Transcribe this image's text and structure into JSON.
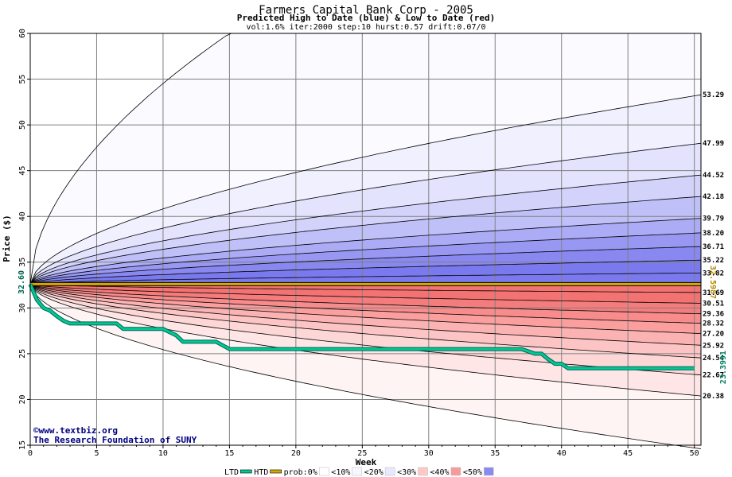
{
  "chart_data": {
    "type": "area",
    "title": "Farmers Capital Bank Corp - 2005",
    "subtitle": "Predicted High to Date (blue) &  Low to Date (red)",
    "params": "vol:1.6% iter:2000 step:10 hurst:0.57 drift:0.07/0",
    "xlabel": "Week",
    "ylabel": "Price ($)",
    "xlim": [
      0,
      50.5
    ],
    "ylim": [
      15,
      60
    ],
    "x_ticks": [
      0,
      5,
      10,
      15,
      20,
      25,
      30,
      35,
      40,
      45,
      50
    ],
    "y_ticks": [
      15,
      20,
      25,
      30,
      35,
      40,
      45,
      50,
      55,
      60
    ],
    "grid": true,
    "start_price": 32.6,
    "start_label": "32.60",
    "high_to_date_label": "32.5987",
    "low_to_date_label": "23.3991",
    "high_bands": [
      {
        "end": 33.82,
        "label": "33.82"
      },
      {
        "end": 35.22,
        "label": "35.22"
      },
      {
        "end": 36.71,
        "label": "36.71"
      },
      {
        "end": 38.2,
        "label": "38.20"
      },
      {
        "end": 39.79,
        "label": "39.79"
      },
      {
        "end": 42.18,
        "label": "42.18"
      },
      {
        "end": 44.52,
        "label": "44.52"
      },
      {
        "end": 47.99,
        "label": "47.99"
      },
      {
        "end": 53.29,
        "label": "53.29"
      }
    ],
    "low_bands": [
      {
        "end": 31.69,
        "label": "31.69"
      },
      {
        "end": 30.51,
        "label": "30.51"
      },
      {
        "end": 29.36,
        "label": "29.36"
      },
      {
        "end": 28.32,
        "label": "28.32"
      },
      {
        "end": 27.2,
        "label": "27.20"
      },
      {
        "end": 25.92,
        "label": "25.92"
      },
      {
        "end": 24.54,
        "label": "24.54"
      },
      {
        "end": 22.67,
        "label": "22.67"
      },
      {
        "end": 20.38,
        "label": "20.38"
      }
    ],
    "outer_high_end": 60,
    "outer_high_reaches_top_week": 15,
    "outer_low_end": 14.6,
    "htd_value": 32.5987,
    "ltd_series": {
      "x": [
        0,
        0.5,
        1.0,
        1.5,
        2.0,
        2.5,
        3.0,
        4.0,
        5.0,
        6.5,
        7.0,
        9.0,
        10.0,
        11.0,
        11.5,
        14.0,
        14.5,
        15.0,
        24.0,
        30.0,
        37.0,
        38.0,
        38.5,
        39.0,
        39.5,
        40.0,
        40.5,
        45.0,
        50.0
      ],
      "y": [
        32.6,
        30.9,
        30.0,
        29.7,
        29.1,
        28.6,
        28.3,
        28.3,
        28.3,
        28.3,
        27.7,
        27.7,
        27.7,
        27.0,
        26.3,
        26.3,
        25.9,
        25.5,
        25.5,
        25.5,
        25.5,
        25.0,
        25.0,
        24.4,
        23.9,
        23.9,
        23.4,
        23.4,
        23.4
      ]
    }
  },
  "colors": {
    "htd": "#d9a800",
    "ltd": "#00c896",
    "ltd_edge": "#006450",
    "grid": "#808080",
    "high_fills": [
      "#fafaff",
      "#f0f0fe",
      "#e3e3fd",
      "#d2d2fb",
      "#c0c0f8",
      "#ababf6",
      "#9898f3",
      "#8888f0",
      "#7a7aee"
    ],
    "low_fills": [
      "#fff4f4",
      "#ffe6e6",
      "#fdd6d6",
      "#fcc4c4",
      "#fbb2b2",
      "#fa9e9e",
      "#f88c8c",
      "#f57c7c",
      "#f37272"
    ]
  },
  "credits": {
    "site": "©www.textbiz.org",
    "org": "The Research Foundation of SUNY"
  },
  "legend": [
    {
      "label": "LTD",
      "kind": "line",
      "color": "#00c896"
    },
    {
      "label": "HTD",
      "kind": "line",
      "color": "#d9a800"
    },
    {
      "label": "prob:0%",
      "kind": "swatch",
      "color": "#ffffff"
    },
    {
      "label": "<10%",
      "kind": "swatch",
      "color": "#f7f7ff"
    },
    {
      "label": "<20%",
      "kind": "swatch",
      "color": "#e8e8fe"
    },
    {
      "label": "<30%",
      "kind": "swatch",
      "color": "#ffc8c8"
    },
    {
      "label": "<40%",
      "kind": "swatch",
      "color": "#f89a9a"
    },
    {
      "label": "<50%",
      "kind": "swatch",
      "color": "#8a8af0"
    }
  ]
}
